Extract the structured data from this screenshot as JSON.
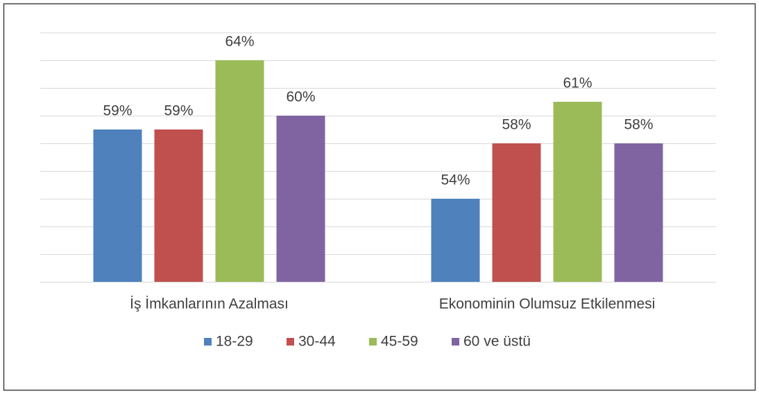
{
  "chart_data": {
    "type": "bar",
    "categories": [
      "İş İmkanlarının Azalması",
      "Ekonominin Olumsuz Etkilenmesi"
    ],
    "series": [
      {
        "name": "18-29",
        "color": "#4f81bd",
        "values": [
          59,
          54
        ],
        "value_labels": [
          "59%",
          "54%"
        ]
      },
      {
        "name": "30-44",
        "color": "#c0504d",
        "values": [
          59,
          58
        ],
        "value_labels": [
          "59%",
          "58%"
        ]
      },
      {
        "name": "45-59",
        "color": "#9bbb59",
        "values": [
          64,
          61
        ],
        "value_labels": [
          "64%",
          "61%"
        ]
      },
      {
        "name": "60 ve üstü",
        "color": "#8064a2",
        "values": [
          60,
          58
        ],
        "value_labels": [
          "60%",
          "58%"
        ]
      }
    ],
    "ylim": [
      48,
      66
    ],
    "yticks": [
      48,
      50,
      52,
      54,
      56,
      58,
      60,
      62,
      64,
      66
    ],
    "grid": true,
    "legend": "bottom"
  }
}
